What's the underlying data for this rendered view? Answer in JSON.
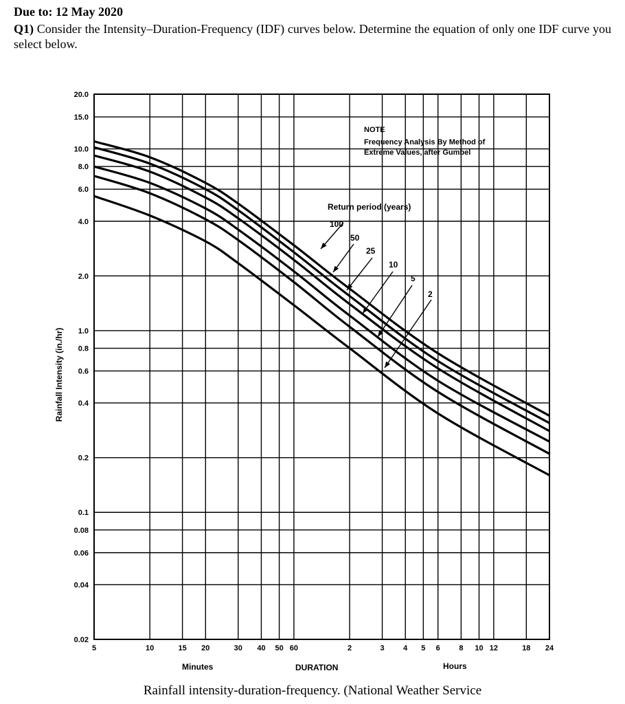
{
  "header": {
    "due": "Due to: 12 May 2020",
    "q1_label": "Q1)",
    "q1_text": " Consider the Intensity–Duration-Frequency (IDF) curves below. Determine the equation of only one IDF curve you select below."
  },
  "caption": "Rainfall intensity-duration-frequency. (National Weather Service",
  "chart_data": {
    "type": "line",
    "title": "",
    "xlabel": "DURATION",
    "xlabel_left": "Minutes",
    "xlabel_right": "Hours",
    "ylabel": "Rainfall Intensity (in./hr)",
    "x_scale": "log",
    "y_scale": "log",
    "x_unit": "minutes",
    "xlim": [
      5,
      1440
    ],
    "ylim": [
      0.02,
      20
    ],
    "grid": true,
    "x_tick_labels": [
      "5",
      "10",
      "15",
      "20",
      "30",
      "40",
      "50",
      "60",
      "2",
      "3",
      "4",
      "5",
      "6",
      "8",
      "10",
      "12",
      "18",
      "24"
    ],
    "x_tick_values": [
      5,
      10,
      15,
      20,
      30,
      40,
      50,
      60,
      120,
      180,
      240,
      300,
      360,
      480,
      600,
      720,
      1080,
      1440
    ],
    "y_tick_labels": [
      "20.0",
      "15.0",
      "10.0",
      "8.0",
      "6.0",
      "4.0",
      "2.0",
      "1.0",
      "0.8",
      "0.6",
      "0.4",
      "0.2",
      "0.1",
      "0.08",
      "0.06",
      "0.04",
      "0.02"
    ],
    "y_tick_values": [
      20,
      15,
      10,
      8,
      6,
      4,
      2,
      1,
      0.8,
      0.6,
      0.4,
      0.2,
      0.1,
      0.08,
      0.06,
      0.04,
      0.02
    ],
    "note_lines": [
      "NOTE",
      "Frequency Analysis By Method of",
      "Extreme Values, after Gumbel"
    ],
    "legend_title": "Return period (years)",
    "x": [
      5,
      10,
      20,
      30,
      60,
      120,
      360,
      1440
    ],
    "series": [
      {
        "name": "100",
        "values": [
          11.0,
          9.0,
          6.5,
          5.0,
          2.95,
          1.7,
          0.75,
          0.34
        ]
      },
      {
        "name": "50",
        "values": [
          10.2,
          8.3,
          6.0,
          4.6,
          2.7,
          1.55,
          0.68,
          0.31
        ]
      },
      {
        "name": "25",
        "values": [
          9.2,
          7.5,
          5.4,
          4.15,
          2.45,
          1.4,
          0.62,
          0.28
        ]
      },
      {
        "name": "10",
        "values": [
          8.0,
          6.5,
          4.7,
          3.6,
          2.12,
          1.21,
          0.53,
          0.245
        ]
      },
      {
        "name": "5",
        "values": [
          7.1,
          5.7,
          4.1,
          3.15,
          1.85,
          1.05,
          0.46,
          0.21
        ]
      },
      {
        "name": "2",
        "values": [
          5.5,
          4.3,
          3.1,
          2.35,
          1.38,
          0.8,
          0.35,
          0.16
        ]
      }
    ]
  }
}
